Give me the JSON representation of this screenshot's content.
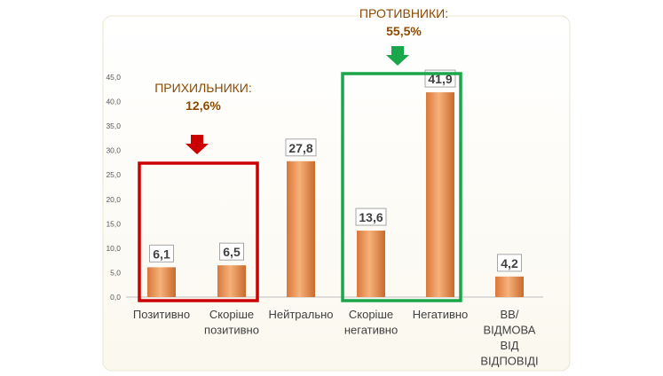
{
  "chart_data": {
    "type": "bar",
    "categories": [
      [
        "Позитивно"
      ],
      [
        "Скоріше",
        "позитивно"
      ],
      [
        "Нейтрально"
      ],
      [
        "Скоріше",
        "негативно"
      ],
      [
        "Негативно"
      ],
      [
        "ВВ/",
        "ВІДМОВА",
        "ВІД",
        "ВІДПОВІДІ"
      ]
    ],
    "values": [
      6.1,
      6.5,
      27.8,
      13.6,
      41.9,
      4.2
    ],
    "value_labels": [
      "6,1",
      "6,5",
      "27,8",
      "13,6",
      "41,9",
      "4,2"
    ],
    "yticks": [
      "0,0",
      "5,0",
      "10,0",
      "15,0",
      "20,0",
      "25,0",
      "30,0",
      "35,0",
      "40,0",
      "45,0"
    ],
    "ylim": [
      0,
      45
    ],
    "grid": false,
    "bar_color": "#f0a060",
    "groups": [
      {
        "title": "ПРИХИЛЬНИКИ:",
        "value": "12,6%",
        "categories": [
          0,
          1
        ],
        "box_color": "#cc0000",
        "arrow_color": "#cc0000"
      },
      {
        "title": "ПРОТИВНИКИ:",
        "value": "55,5%",
        "categories": [
          3,
          4
        ],
        "box_color": "#1aa64b",
        "arrow_color": "#1aa64b"
      }
    ],
    "annotation_color": "#8b4a00"
  }
}
